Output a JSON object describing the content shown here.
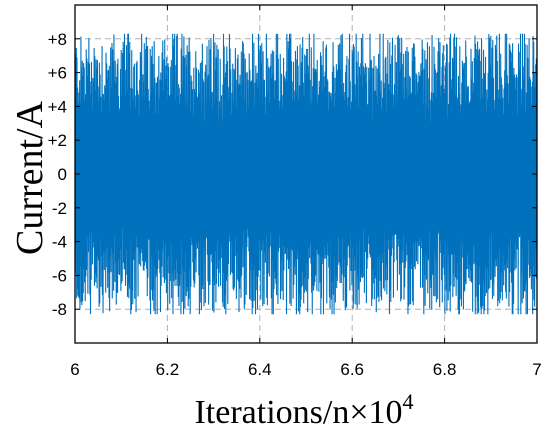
{
  "chart_data": {
    "type": "line",
    "xlabel": "Iterations/n×10",
    "xlabel_exponent": "4",
    "ylabel": "Current/A",
    "xlim": [
      6,
      7
    ],
    "ylim": [
      -10,
      10
    ],
    "x_ticks": [
      6,
      6.2,
      6.4,
      6.6,
      6.8,
      7
    ],
    "x_tick_labels": [
      "6",
      "6.2",
      "6.4",
      "6.6",
      "6.8",
      "7"
    ],
    "y_ticks": [
      8,
      6,
      4,
      2,
      0,
      -2,
      -4,
      -6,
      -8
    ],
    "y_tick_labels": [
      "+8",
      "+6",
      "+4",
      "+2",
      "0",
      "-2",
      "-4",
      "-6",
      "-8"
    ],
    "grid": true,
    "series_color": "#0072BD",
    "series": [
      {
        "description_of_signal": "dense oscillating current",
        "amplitude_peak": 8.3,
        "x_start": 6,
        "x_end": 7
      }
    ]
  }
}
